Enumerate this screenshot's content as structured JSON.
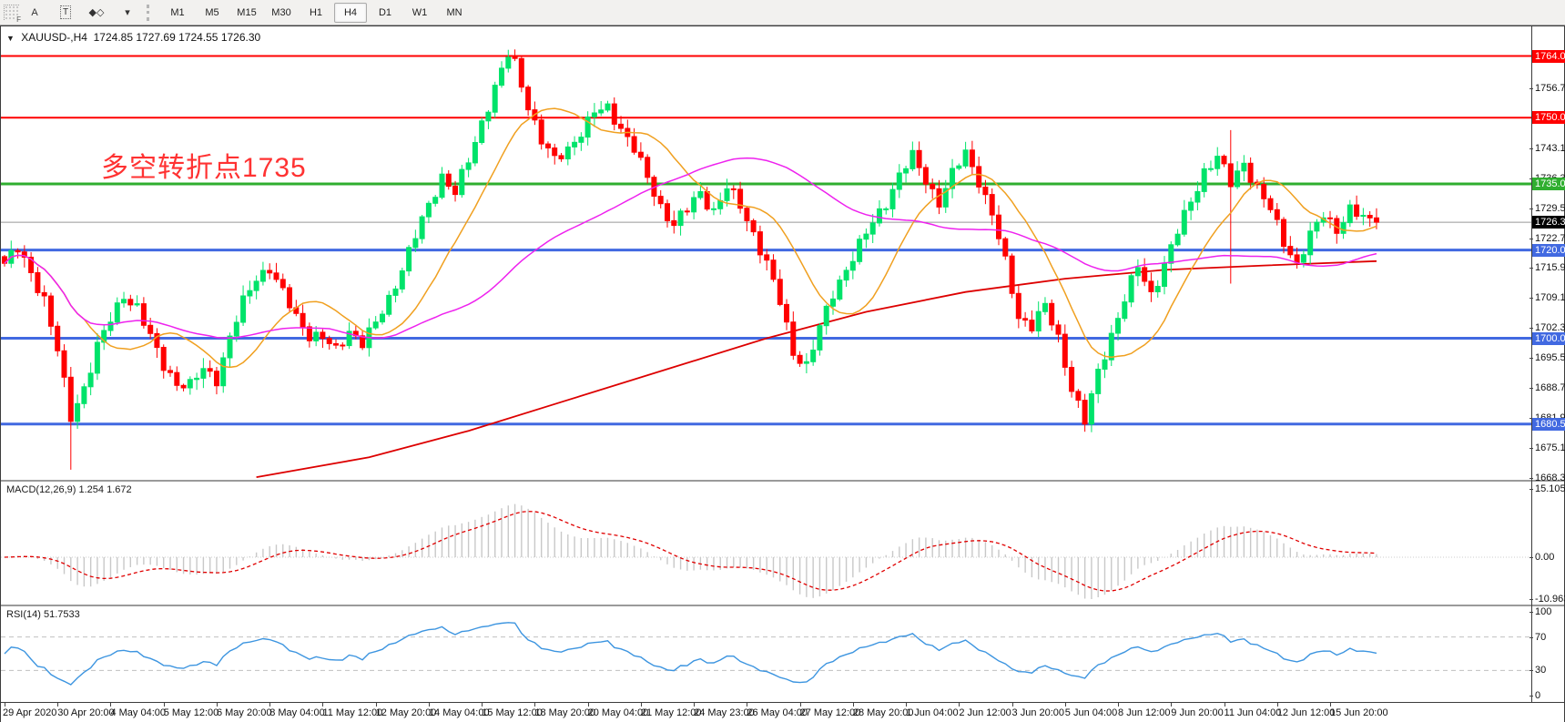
{
  "toolbar": {
    "tools": [
      {
        "name": "toolbar-grip",
        "label": "F"
      },
      {
        "name": "text-label-tool",
        "label": "A"
      },
      {
        "name": "text-box-tool",
        "label": "T"
      },
      {
        "name": "arrow-objects-tool",
        "label": "◆◇"
      },
      {
        "name": "arrow-dropdown",
        "label": "▾"
      }
    ],
    "timeframes": [
      "M1",
      "M5",
      "M15",
      "M30",
      "H1",
      "H4",
      "D1",
      "W1",
      "MN"
    ],
    "active_timeframe": "H4"
  },
  "chart_header": {
    "collapse_icon": "▼",
    "symbol": "XAUUSD-,H4",
    "open": "1724.85",
    "high": "1727.69",
    "low": "1724.55",
    "close": "1726.30"
  },
  "annotation": {
    "text": "多空转折点1735",
    "color": "#ff3232"
  },
  "price_axis": {
    "ticks": [
      "1756.70",
      "1743.10",
      "1736.30",
      "1729.50",
      "1722.70",
      "1715.90",
      "1709.10",
      "1702.30",
      "1695.50",
      "1688.70",
      "1681.90",
      "1675.10",
      "1668.30"
    ]
  },
  "chart_data": {
    "type": "candlestick",
    "symbol": "XAUUSD",
    "timeframe": "H4",
    "num_candles": 208,
    "price_axis_top": 1770.3,
    "price_axis_bottom": 1667.9,
    "candle_up_color": "#00e36a",
    "candle_down_color": "#ff0000",
    "close_waypoints": [
      [
        0,
        1717
      ],
      [
        2,
        1720
      ],
      [
        4,
        1715
      ],
      [
        6,
        1709
      ],
      [
        8,
        1697
      ],
      [
        10,
        1682
      ],
      [
        12,
        1689
      ],
      [
        14,
        1698
      ],
      [
        16,
        1704
      ],
      [
        18,
        1710
      ],
      [
        20,
        1707
      ],
      [
        22,
        1700
      ],
      [
        24,
        1694
      ],
      [
        26,
        1690
      ],
      [
        28,
        1689
      ],
      [
        30,
        1693
      ],
      [
        32,
        1691
      ],
      [
        34,
        1700
      ],
      [
        36,
        1708
      ],
      [
        38,
        1714
      ],
      [
        40,
        1716
      ],
      [
        42,
        1710
      ],
      [
        44,
        1705
      ],
      [
        46,
        1701
      ],
      [
        48,
        1700
      ],
      [
        50,
        1697
      ],
      [
        52,
        1702
      ],
      [
        54,
        1699
      ],
      [
        56,
        1703
      ],
      [
        58,
        1709
      ],
      [
        60,
        1716
      ],
      [
        62,
        1723
      ],
      [
        64,
        1730
      ],
      [
        66,
        1737
      ],
      [
        68,
        1733
      ],
      [
        70,
        1740
      ],
      [
        72,
        1749
      ],
      [
        74,
        1757
      ],
      [
        76,
        1764
      ],
      [
        77,
        1762
      ],
      [
        79,
        1753
      ],
      [
        81,
        1745
      ],
      [
        83,
        1740
      ],
      [
        85,
        1743
      ],
      [
        87,
        1747
      ],
      [
        89,
        1751
      ],
      [
        91,
        1752
      ],
      [
        93,
        1748
      ],
      [
        95,
        1743
      ],
      [
        97,
        1736
      ],
      [
        99,
        1730
      ],
      [
        101,
        1726
      ],
      [
        103,
        1729
      ],
      [
        105,
        1733
      ],
      [
        107,
        1729
      ],
      [
        109,
        1734
      ],
      [
        111,
        1730
      ],
      [
        113,
        1724
      ],
      [
        115,
        1717
      ],
      [
        117,
        1708
      ],
      [
        119,
        1697
      ],
      [
        121,
        1694
      ],
      [
        123,
        1702
      ],
      [
        125,
        1710
      ],
      [
        127,
        1716
      ],
      [
        129,
        1721
      ],
      [
        131,
        1726
      ],
      [
        133,
        1731
      ],
      [
        135,
        1737
      ],
      [
        137,
        1741
      ],
      [
        139,
        1736
      ],
      [
        141,
        1731
      ],
      [
        143,
        1737
      ],
      [
        145,
        1742
      ],
      [
        147,
        1736
      ],
      [
        149,
        1728
      ],
      [
        151,
        1717
      ],
      [
        153,
        1705
      ],
      [
        155,
        1703
      ],
      [
        157,
        1707
      ],
      [
        159,
        1700
      ],
      [
        161,
        1689
      ],
      [
        163,
        1681
      ],
      [
        165,
        1692
      ],
      [
        167,
        1701
      ],
      [
        169,
        1709
      ],
      [
        171,
        1716
      ],
      [
        173,
        1710
      ],
      [
        175,
        1717
      ],
      [
        177,
        1724
      ],
      [
        179,
        1731
      ],
      [
        181,
        1738
      ],
      [
        183,
        1741
      ],
      [
        185,
        1735
      ],
      [
        187,
        1740
      ],
      [
        189,
        1734
      ],
      [
        191,
        1729
      ],
      [
        193,
        1722
      ],
      [
        195,
        1717
      ],
      [
        197,
        1723
      ],
      [
        199,
        1728
      ],
      [
        201,
        1725
      ],
      [
        203,
        1729
      ],
      [
        205,
        1727
      ],
      [
        207,
        1726.3
      ]
    ],
    "spikes": [
      {
        "i": 10,
        "low": 1670.2
      },
      {
        "i": 76,
        "high": 1765.4
      },
      {
        "i": 163,
        "low": 1678.8
      },
      {
        "i": 185,
        "high": 1747.2,
        "low": 1712.4
      }
    ],
    "hlines": [
      {
        "price": 1764.0,
        "label": "1764.00",
        "color": "#ff0000",
        "width": 2
      },
      {
        "price": 1750.0,
        "label": "1750.00",
        "color": "#ff0000",
        "width": 2
      },
      {
        "price": 1735.0,
        "label": "1735.00",
        "color": "#2fae2f",
        "width": 3
      },
      {
        "price": 1720.0,
        "label": "1720.00",
        "color": "#4169e1",
        "width": 3
      },
      {
        "price": 1700.0,
        "label": "1700.00",
        "color": "#4169e1",
        "width": 3
      },
      {
        "price": 1680.56,
        "label": "1680.56",
        "color": "#4169e1",
        "width": 3
      }
    ],
    "current_price": {
      "value": 1726.3,
      "label": "1726.30",
      "line_color": "#999999",
      "badge_bg": "#000000"
    },
    "moving_averages": [
      {
        "name": "fast-ma",
        "period": 13,
        "color": "#f0a020"
      },
      {
        "name": "medium-ma",
        "period": 50,
        "color": "#ee22ee"
      }
    ],
    "long_ma": {
      "color": "#dd0000",
      "waypoints": [
        [
          38,
          1668.5
        ],
        [
          55,
          1673
        ],
        [
          70,
          1679
        ],
        [
          85,
          1686
        ],
        [
          100,
          1693
        ],
        [
          115,
          1700
        ],
        [
          130,
          1706
        ],
        [
          145,
          1710.5
        ],
        [
          160,
          1713.5
        ],
        [
          175,
          1715.5
        ],
        [
          190,
          1716.5
        ],
        [
          207,
          1717.5
        ]
      ]
    },
    "macd": {
      "name": "MACD",
      "params": "12,26,9",
      "value_main": "1.254",
      "value_signal": "1.672",
      "axis_ticks": [
        "15.105",
        "0.00",
        "-10.963"
      ],
      "bar_color": "#c8c8c8",
      "signal_color": "#e00000"
    },
    "rsi": {
      "name": "RSI",
      "params": "14",
      "value": "51.7533",
      "axis_ticks": [
        "100",
        "70",
        "30",
        "0"
      ],
      "levels": [
        70,
        30
      ],
      "line_color": "#3d95e0",
      "level_color": "#c0c0c0"
    },
    "time_labels": [
      "29 Apr 2020",
      "30 Apr 20:00",
      "4 May 04:00",
      "5 May 12:00",
      "6 May 20:00",
      "8 May 04:00",
      "11 May 12:00",
      "12 May 20:00",
      "14 May 04:00",
      "15 May 12:00",
      "18 May 20:00",
      "20 May 04:00",
      "21 May 12:00",
      "24 May 23:00",
      "26 May 04:00",
      "27 May 12:00",
      "28 May 20:00",
      "1 Jun 04:00",
      "2 Jun 12:00",
      "3 Jun 20:00",
      "5 Jun 04:00",
      "8 Jun 12:00",
      "9 Jun 20:00",
      "11 Jun 04:00",
      "12 Jun 12:00",
      "15 Jun 20:00"
    ],
    "label_every_n_candles": 8
  }
}
